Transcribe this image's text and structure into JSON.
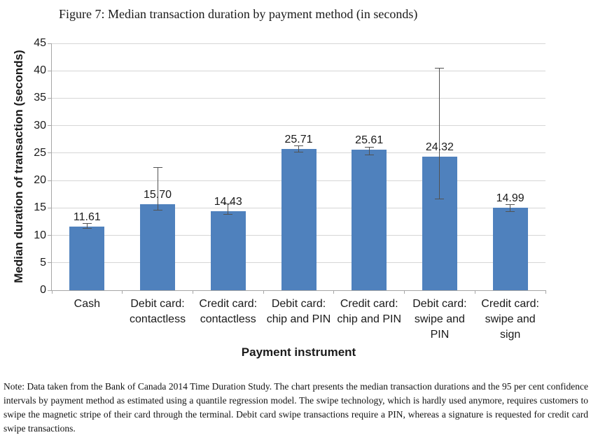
{
  "figure": {
    "title": "Figure 7: Median transaction duration by payment method (in seconds)",
    "note": "Note: Data taken from the Bank of Canada 2014 Time Duration Study. The chart presents the median transaction durations and the 95 per cent confidence intervals by payment method as estimated using a quantile regression model. The swipe technology, which is hardly used anymore, requires customers to swipe the magnetic stripe of their card through the terminal. Debit card swipe transactions require a PIN, whereas a signature is requested for credit card swipe transactions."
  },
  "chart_data": {
    "type": "bar",
    "title": "Figure 7: Median transaction duration by payment method (in seconds)",
    "xlabel": "Payment instrument",
    "ylabel": "Median duration of transaction (seconds)",
    "ylim": [
      0,
      45
    ],
    "ytick_step": 5,
    "yticks": [
      0,
      5,
      10,
      15,
      20,
      25,
      30,
      35,
      40,
      45
    ],
    "grid": true,
    "legend": "none",
    "categories": [
      "Cash",
      "Debit card: contactless",
      "Credit card: contactless",
      "Debit card: chip and PIN",
      "Credit card: chip and PIN",
      "Debit card: swipe and PIN",
      "Credit card: swipe and sign"
    ],
    "category_label_lines": [
      [
        "Cash"
      ],
      [
        "Debit card:",
        "contactless"
      ],
      [
        "Credit card:",
        "contactless"
      ],
      [
        "Debit card:",
        "chip and PIN"
      ],
      [
        "Credit card:",
        "chip and PIN"
      ],
      [
        "Debit card:",
        "swipe and",
        "PIN"
      ],
      [
        "Credit card:",
        "swipe and",
        "sign"
      ]
    ],
    "values": [
      11.61,
      15.7,
      14.43,
      25.71,
      25.61,
      24.32,
      14.99
    ],
    "data_labels": [
      "11.61",
      "15.70",
      "14.43",
      "25.71",
      "25.61",
      "24.32",
      "14.99"
    ],
    "error_bars_95ci": [
      {
        "low": 11.3,
        "high": 12.2
      },
      {
        "low": 14.6,
        "high": 22.4
      },
      {
        "low": 13.8,
        "high": 15.7
      },
      {
        "low": 25.2,
        "high": 26.3
      },
      {
        "low": 24.7,
        "high": 26.1
      },
      {
        "low": 16.6,
        "high": 40.5
      },
      {
        "low": 14.4,
        "high": 15.6
      }
    ],
    "bar_color": "#4f81bd",
    "error_bar_color": "#525252",
    "gridline_color": "#d6d6d6",
    "axis_line_color": "#a6a6a6",
    "label_color": "#1a1a1a"
  }
}
